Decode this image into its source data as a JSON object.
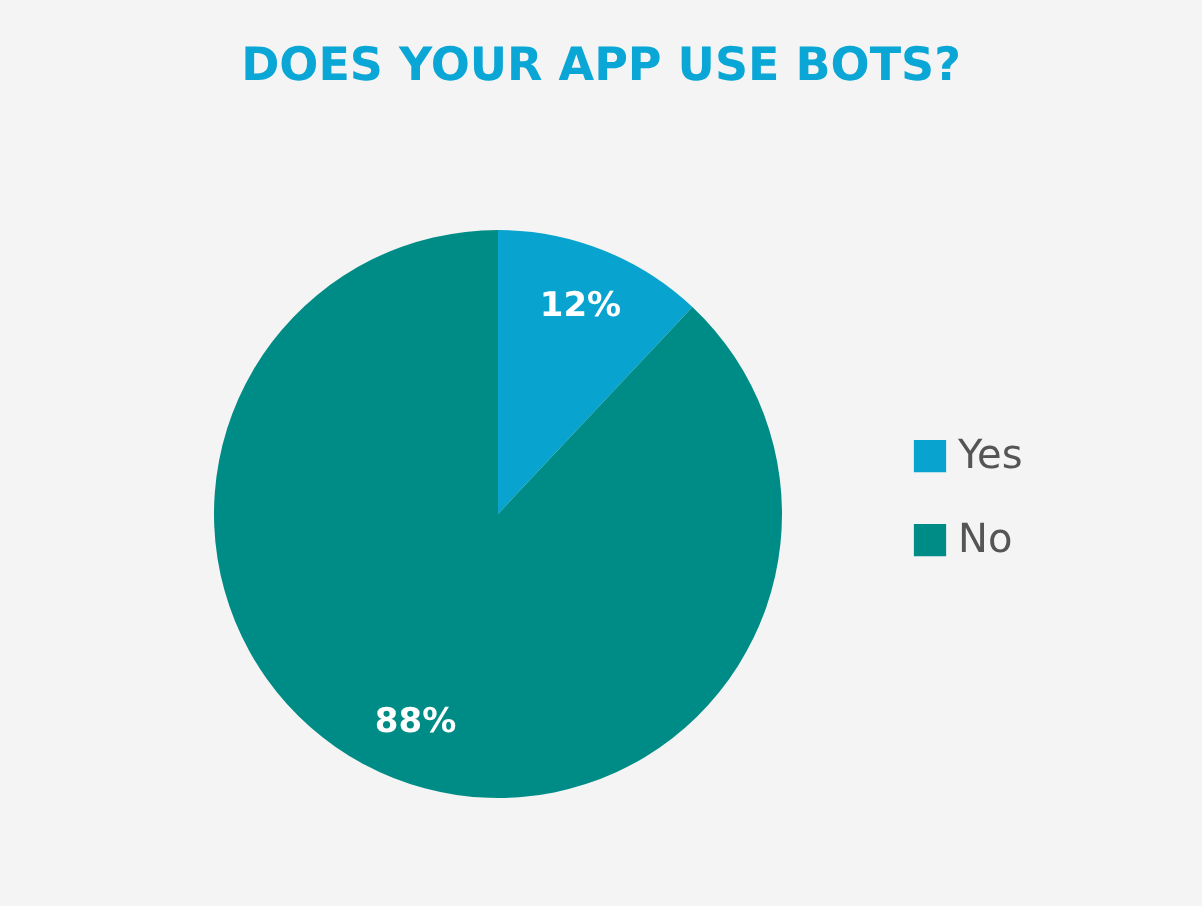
{
  "chart_data": {
    "type": "pie",
    "title": "DOES YOUR APP USE BOTS?",
    "categories": [
      "Yes",
      "No"
    ],
    "values": [
      12,
      88
    ],
    "value_labels": [
      "12%",
      "88%"
    ],
    "colors": [
      "#08a4cf",
      "#008c86"
    ],
    "legend": "right"
  }
}
